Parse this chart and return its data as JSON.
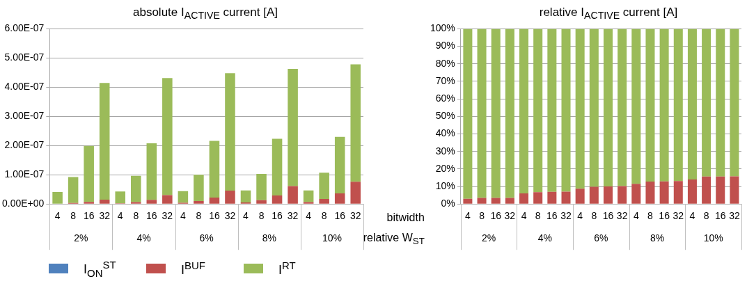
{
  "chart_data": [
    {
      "type": "bar",
      "title": "absolute I$_{ACTIVE}$ current [A]",
      "stacked": true,
      "legend": "bottom",
      "grid": "y",
      "categories": [
        "4",
        "8",
        "16",
        "32",
        "4",
        "8",
        "16",
        "32",
        "4",
        "8",
        "16",
        "32",
        "4",
        "8",
        "16",
        "32",
        "4",
        "8",
        "16",
        "32"
      ],
      "series": [
        {
          "name": "I$_{ON}$$^{ST}$",
          "color": "#4f81bd",
          "values": [
            0,
            0,
            0,
            0,
            0,
            0,
            0,
            0,
            0,
            0,
            0,
            0,
            0,
            0,
            0,
            0,
            0,
            0,
            0,
            0
          ]
        },
        {
          "name": "I$^{BUF}$",
          "color": "#c0504d",
          "values": [
            1.2e-09,
            3.2e-09,
            7e-09,
            1.45e-08,
            2.5e-09,
            6.4e-09,
            1.4e-08,
            3e-08,
            3.8e-09,
            9.8e-09,
            2.2e-08,
            4.6e-08,
            5.3e-09,
            1.3e-08,
            2.9e-08,
            6.1e-08,
            6.6e-09,
            1.7e-08,
            3.6e-08,
            7.6e-08
          ]
        },
        {
          "name": "I$^{RT}$",
          "color": "#9bbb59",
          "values": [
            4e-08,
            8.9e-08,
            1.92e-07,
            4e-07,
            4e-08,
            9e-08,
            1.94e-07,
            4.01e-07,
            4e-08,
            9e-08,
            1.94e-07,
            4.02e-07,
            4.1e-08,
            9e-08,
            1.94e-07,
            4.02e-07,
            4e-08,
            9e-08,
            1.94e-07,
            4.02e-07
          ]
        }
      ],
      "ylim": [
        0,
        6e-07
      ],
      "yticks": [
        {
          "value": 0,
          "label": "0.00E+00"
        },
        {
          "value": 1e-07,
          "label": "1.00E-07"
        },
        {
          "value": 2e-07,
          "label": "2.00E-07"
        },
        {
          "value": 3e-07,
          "label": "3.00E-07"
        },
        {
          "value": 4e-07,
          "label": "4.00E-07"
        },
        {
          "value": 5e-07,
          "label": "5.00E-07"
        },
        {
          "value": 6e-07,
          "label": "6.00E-07"
        }
      ],
      "annotations": [
        "2%",
        "4%",
        "6%",
        "8%",
        "10%"
      ]
    },
    {
      "type": "bar",
      "title": "relative I$_{ACTIVE}$ current [A]",
      "stacked": true,
      "grid": "y",
      "xlabel": "bitwidth",
      "categories": [
        "4",
        "8",
        "16",
        "32",
        "4",
        "8",
        "16",
        "32",
        "4",
        "8",
        "16",
        "32",
        "4",
        "8",
        "16",
        "32",
        "4",
        "8",
        "16",
        "32"
      ],
      "series": [
        {
          "color": "#4f81bd",
          "values": [
            0,
            0,
            0,
            0,
            0,
            0,
            0,
            0,
            0,
            0,
            0,
            0,
            0,
            0,
            0,
            0,
            0,
            0,
            0,
            0
          ]
        },
        {
          "color": "#c0504d",
          "values": [
            3,
            3.5,
            3.5,
            3.5,
            6,
            6.7,
            6.9,
            7,
            8.7,
            9.8,
            10,
            10.2,
            11.5,
            12.8,
            12.9,
            13.1,
            14,
            15.7,
            15.7,
            15.8
          ]
        },
        {
          "color": "#9bbb59",
          "values": [
            97,
            96.5,
            96.5,
            96.5,
            94,
            93.3,
            93.1,
            93,
            91.3,
            90.2,
            90,
            89.8,
            88.5,
            87.2,
            87.1,
            86.9,
            86,
            84.3,
            84.3,
            84.2
          ]
        }
      ],
      "ylim": [
        0,
        100
      ],
      "yticks": [
        {
          "value": 0,
          "label": "0%"
        },
        {
          "value": 10,
          "label": "10%"
        },
        {
          "value": 20,
          "label": "20%"
        },
        {
          "value": 30,
          "label": "30%"
        },
        {
          "value": 40,
          "label": "40%"
        },
        {
          "value": 50,
          "label": "50%"
        },
        {
          "value": 60,
          "label": "60%"
        },
        {
          "value": 70,
          "label": "70%"
        },
        {
          "value": 80,
          "label": "80%"
        },
        {
          "value": 90,
          "label": "90%"
        },
        {
          "value": 100,
          "label": "100%"
        }
      ],
      "annotations": [
        "relative W$_{ST}$",
        "2%",
        "4%",
        "6%",
        "8%",
        "10%"
      ]
    }
  ]
}
